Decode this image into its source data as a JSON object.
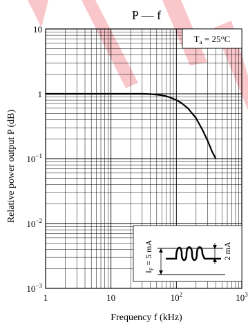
{
  "chart_data": {
    "type": "line",
    "title": "P — f",
    "xlabel": "Frequency  f  (kHz)",
    "ylabel": "Relative power output  P  (dB)",
    "x_scale": "log",
    "y_scale": "log",
    "xlim": [
      1,
      1000
    ],
    "ylim": [
      0.001,
      10
    ],
    "grid": true,
    "x_ticks": [
      {
        "value": 1,
        "mant": "1",
        "exp": ""
      },
      {
        "value": 10,
        "mant": "10",
        "exp": ""
      },
      {
        "value": 100,
        "mant": "10",
        "exp": "2"
      },
      {
        "value": 1000,
        "mant": "10",
        "exp": "3"
      }
    ],
    "y_ticks": [
      {
        "value": 10,
        "mant": "10",
        "exp": ""
      },
      {
        "value": 1,
        "mant": "1",
        "exp": ""
      },
      {
        "value": 0.1,
        "mant": "10",
        "exp": "−1"
      },
      {
        "value": 0.01,
        "mant": "10",
        "exp": "−2"
      },
      {
        "value": 0.001,
        "mant": "10",
        "exp": "−3"
      }
    ],
    "annotation": {
      "main": "T",
      "sub": "a",
      "rest": " = 25°C"
    },
    "series": [
      {
        "x": [
          1,
          5,
          10,
          20,
          30,
          40,
          50,
          60,
          70,
          80,
          100,
          120,
          150,
          200,
          250,
          300,
          350,
          400
        ],
        "y": [
          1,
          1,
          1,
          1,
          1,
          0.99,
          0.97,
          0.95,
          0.92,
          0.88,
          0.8,
          0.72,
          0.6,
          0.42,
          0.28,
          0.19,
          0.13,
          0.1
        ]
      }
    ],
    "inset": {
      "if_main": "I",
      "if_sub": "F",
      "if_rest": " = 5 mA",
      "amp_label": "2 mA"
    },
    "colors": {
      "line": "#000000",
      "grid": "#000000",
      "watermark": "#e8000d"
    }
  }
}
